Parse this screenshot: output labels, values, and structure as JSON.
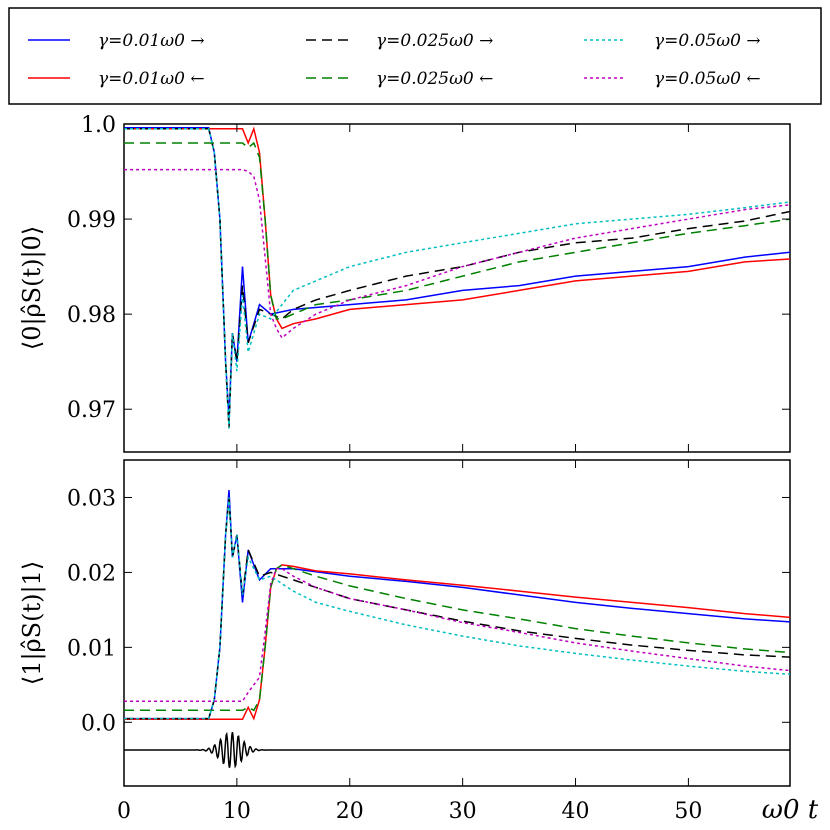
{
  "chart_data": [
    {
      "type": "line",
      "panel": "top",
      "ylabel": "⟨0|ρ̂S(t)|0⟩",
      "xlim": [
        0,
        59
      ],
      "ylim": [
        0.9655,
        1.0
      ],
      "yticks": [
        "0.97",
        "0.98",
        "0.99",
        "1.0"
      ],
      "ytick_values": [
        0.97,
        0.98,
        0.99,
        1.0
      ],
      "grid": false,
      "series": [
        {
          "name": "γ=0.01ω0 →",
          "color": "#0000ff",
          "dash": "solid",
          "x": [
            0,
            7.5,
            8.0,
            8.5,
            9.0,
            9.3,
            9.6,
            10.0,
            10.5,
            11,
            12,
            13,
            15,
            20,
            25,
            30,
            35,
            40,
            45,
            50,
            55,
            59
          ],
          "y": [
            0.9996,
            0.9996,
            0.997,
            0.99,
            0.975,
            0.969,
            0.978,
            0.975,
            0.985,
            0.977,
            0.981,
            0.98,
            0.9805,
            0.981,
            0.9815,
            0.9825,
            0.983,
            0.984,
            0.9845,
            0.985,
            0.986,
            0.9865
          ]
        },
        {
          "name": "γ=0.01ω0 ←",
          "color": "#ff0000",
          "dash": "solid",
          "x": [
            0,
            10.5,
            11,
            11.5,
            12,
            12.5,
            13,
            13.5,
            14,
            15,
            17,
            20,
            25,
            30,
            35,
            40,
            45,
            50,
            55,
            59
          ],
          "y": [
            0.9995,
            0.9995,
            0.998,
            0.9995,
            0.997,
            0.99,
            0.982,
            0.9795,
            0.9785,
            0.979,
            0.9795,
            0.9805,
            0.981,
            0.9815,
            0.9825,
            0.9835,
            0.984,
            0.9845,
            0.9855,
            0.9858
          ]
        },
        {
          "name": "γ=0.025ω0 →",
          "color": "#000000",
          "dash": "long",
          "x": [
            0,
            7.5,
            8.0,
            8.5,
            9.0,
            9.3,
            9.6,
            10.0,
            10.5,
            11,
            12,
            13,
            14,
            15,
            17,
            20,
            25,
            30,
            35,
            40,
            45,
            50,
            55,
            59
          ],
          "y": [
            0.9995,
            0.9995,
            0.997,
            0.99,
            0.975,
            0.968,
            0.978,
            0.975,
            0.983,
            0.977,
            0.9805,
            0.98,
            0.9795,
            0.9805,
            0.9815,
            0.9825,
            0.984,
            0.985,
            0.9865,
            0.9875,
            0.988,
            0.989,
            0.9898,
            0.9908
          ]
        },
        {
          "name": "γ=0.025ω0 ←",
          "color": "#008000",
          "dash": "long",
          "x": [
            0,
            10.5,
            11,
            11.5,
            12,
            12.5,
            13,
            13.5,
            14,
            15,
            17,
            20,
            25,
            30,
            35,
            40,
            45,
            50,
            55,
            59
          ],
          "y": [
            0.998,
            0.998,
            0.9975,
            0.998,
            0.9965,
            0.99,
            0.982,
            0.9795,
            0.9795,
            0.98,
            0.981,
            0.9815,
            0.9825,
            0.984,
            0.9855,
            0.9865,
            0.9875,
            0.9885,
            0.9893,
            0.99
          ]
        },
        {
          "name": "γ=0.05ω0 →",
          "color": "#00bfbf",
          "dash": "dotted",
          "x": [
            0,
            7.5,
            8.0,
            8.5,
            9.0,
            9.3,
            9.6,
            10.0,
            10.5,
            11,
            12,
            13,
            14,
            15,
            17,
            20,
            25,
            30,
            35,
            40,
            45,
            50,
            55,
            59
          ],
          "y": [
            0.9995,
            0.9995,
            0.997,
            0.99,
            0.975,
            0.968,
            0.978,
            0.974,
            0.982,
            0.976,
            0.98,
            0.9795,
            0.981,
            0.9825,
            0.9835,
            0.985,
            0.9865,
            0.9875,
            0.9885,
            0.9895,
            0.99,
            0.9905,
            0.9912,
            0.9918
          ]
        },
        {
          "name": "γ=0.05ω0 ←",
          "color": "#bf00bf",
          "dash": "dotted",
          "x": [
            0,
            10.5,
            11,
            11.5,
            12,
            12.5,
            13,
            13.5,
            14,
            15,
            17,
            20,
            25,
            30,
            35,
            40,
            45,
            50,
            55,
            59
          ],
          "y": [
            0.9952,
            0.9952,
            0.995,
            0.9945,
            0.992,
            0.986,
            0.98,
            0.9785,
            0.9775,
            0.9785,
            0.98,
            0.9815,
            0.983,
            0.985,
            0.9865,
            0.988,
            0.989,
            0.99,
            0.991,
            0.9915
          ]
        }
      ]
    },
    {
      "type": "line",
      "panel": "bottom",
      "ylabel": "⟨1|ρ̂S(t)|1⟩",
      "xlabel": "ω0 t",
      "xlim": [
        0,
        59
      ],
      "ylim": [
        -0.0085,
        0.035
      ],
      "xticks": [
        "0",
        "10",
        "20",
        "30",
        "40",
        "50"
      ],
      "xtick_values": [
        0,
        10,
        20,
        30,
        40,
        50
      ],
      "yticks": [
        "0.0",
        "0.01",
        "0.02",
        "0.03"
      ],
      "ytick_values": [
        0.0,
        0.01,
        0.02,
        0.03
      ],
      "grid": false,
      "series": [
        {
          "name": "γ=0.01ω0 →",
          "color": "#0000ff",
          "dash": "solid",
          "x": [
            0,
            7.5,
            8.0,
            8.5,
            9.0,
            9.3,
            9.6,
            10.0,
            10.5,
            11,
            12,
            13,
            15,
            20,
            25,
            30,
            35,
            40,
            45,
            50,
            55,
            59
          ],
          "y": [
            0.0005,
            0.0005,
            0.003,
            0.01,
            0.025,
            0.031,
            0.022,
            0.025,
            0.016,
            0.023,
            0.019,
            0.0205,
            0.0205,
            0.0195,
            0.0188,
            0.018,
            0.017,
            0.016,
            0.0152,
            0.0145,
            0.0138,
            0.0134
          ]
        },
        {
          "name": "γ=0.01ω0 ←",
          "color": "#ff0000",
          "dash": "solid",
          "x": [
            0,
            10.5,
            11,
            11.5,
            12,
            12.5,
            13,
            13.5,
            14,
            15,
            17,
            20,
            25,
            30,
            35,
            40,
            45,
            50,
            55,
            59
          ],
          "y": [
            0.0004,
            0.0004,
            0.002,
            0.0005,
            0.003,
            0.01,
            0.018,
            0.0205,
            0.021,
            0.0208,
            0.0202,
            0.0198,
            0.019,
            0.0183,
            0.0175,
            0.0167,
            0.016,
            0.0153,
            0.0145,
            0.014
          ]
        },
        {
          "name": "γ=0.025ω0 →",
          "color": "#000000",
          "dash": "long",
          "x": [
            0,
            7.5,
            8.0,
            8.5,
            9.0,
            9.3,
            9.6,
            10.0,
            10.5,
            11,
            12,
            13,
            14,
            15,
            17,
            20,
            25,
            30,
            35,
            40,
            45,
            50,
            55,
            59
          ],
          "y": [
            0.0005,
            0.0005,
            0.003,
            0.01,
            0.025,
            0.03,
            0.022,
            0.025,
            0.017,
            0.023,
            0.0195,
            0.02,
            0.0195,
            0.019,
            0.018,
            0.0165,
            0.015,
            0.0135,
            0.0122,
            0.0112,
            0.0103,
            0.0096,
            0.009,
            0.0087
          ]
        },
        {
          "name": "γ=0.025ω0 ←",
          "color": "#008000",
          "dash": "long",
          "x": [
            0,
            10.5,
            11,
            11.5,
            12,
            12.5,
            13,
            13.5,
            14,
            15,
            17,
            20,
            25,
            30,
            35,
            40,
            45,
            50,
            55,
            59
          ],
          "y": [
            0.0016,
            0.0016,
            0.002,
            0.0016,
            0.003,
            0.01,
            0.018,
            0.0205,
            0.021,
            0.0205,
            0.0195,
            0.0182,
            0.0165,
            0.015,
            0.0138,
            0.0125,
            0.0115,
            0.0106,
            0.0098,
            0.0093
          ]
        },
        {
          "name": "γ=0.05ω0 →",
          "color": "#00bfbf",
          "dash": "dotted",
          "x": [
            0,
            7.5,
            8.0,
            8.5,
            9.0,
            9.3,
            9.6,
            10.0,
            10.5,
            11,
            12,
            13,
            14,
            15,
            17,
            20,
            25,
            30,
            35,
            40,
            45,
            50,
            55,
            59
          ],
          "y": [
            0.0005,
            0.0005,
            0.003,
            0.01,
            0.025,
            0.03,
            0.022,
            0.025,
            0.017,
            0.022,
            0.019,
            0.0195,
            0.0185,
            0.0175,
            0.016,
            0.0148,
            0.013,
            0.0115,
            0.0102,
            0.0092,
            0.0083,
            0.0075,
            0.0068,
            0.0064
          ]
        },
        {
          "name": "γ=0.05ω0 ←",
          "color": "#bf00bf",
          "dash": "dotted",
          "x": [
            0,
            10.5,
            11,
            11.5,
            12,
            12.5,
            13,
            13.5,
            14,
            15,
            17,
            20,
            25,
            30,
            35,
            40,
            45,
            50,
            55,
            59
          ],
          "y": [
            0.0028,
            0.0028,
            0.004,
            0.005,
            0.006,
            0.012,
            0.0185,
            0.0205,
            0.0205,
            0.0195,
            0.018,
            0.0165,
            0.015,
            0.0133,
            0.012,
            0.0106,
            0.0095,
            0.0085,
            0.0075,
            0.0069
          ]
        }
      ]
    }
  ]
}
